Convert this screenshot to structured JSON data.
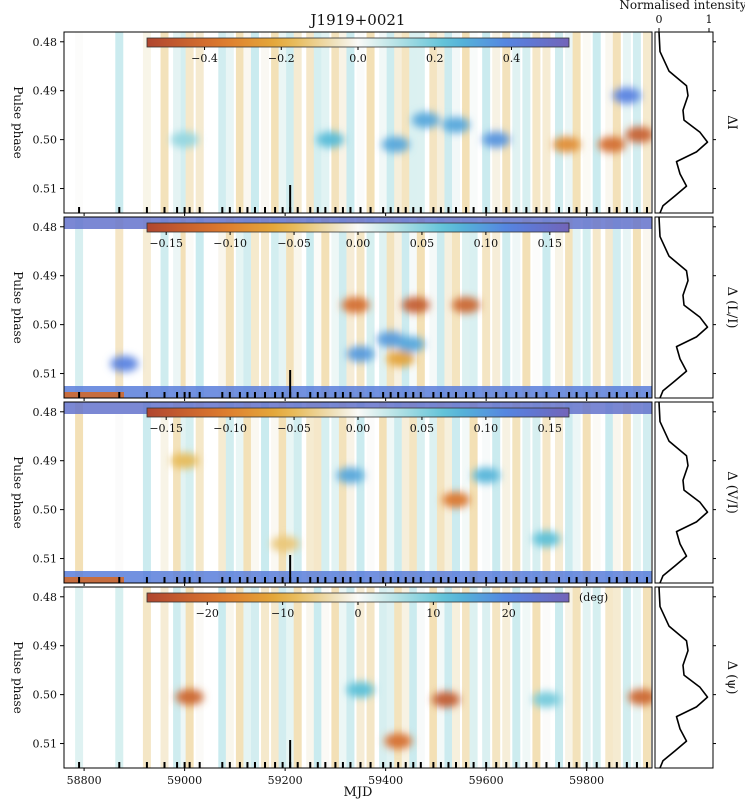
{
  "chart_data": {
    "type": "heatmap",
    "title": "J1919+0021",
    "xlabel": "MJD",
    "ylabel": "Pulse phase",
    "xlim": [
      58760,
      59930
    ],
    "ylim": [
      0.515,
      0.478
    ],
    "x_ticks": [
      58800,
      59000,
      59200,
      59400,
      59600,
      59800
    ],
    "y_ticks": [
      {
        "value": 0.48,
        "label": "0.48"
      },
      {
        "value": 0.49,
        "label": "0.49"
      },
      {
        "value": 0.5,
        "label": "0.50"
      },
      {
        "value": 0.51,
        "label": "0.51"
      }
    ],
    "profile_header": "Normalised intensity",
    "profile_ticks": [
      {
        "value": 0,
        "label": "0"
      },
      {
        "value": 1,
        "label": "1"
      }
    ],
    "panels": [
      {
        "label": "ΔI",
        "colorbar": {
          "min": -0.55,
          "max": 0.55,
          "ticks": [
            -0.4,
            -0.2,
            0.0,
            0.2,
            0.4
          ],
          "tick_labels": [
            "−0.4",
            "−0.2",
            "0.0",
            "0.2",
            "0.4"
          ],
          "unit": ""
        },
        "features": [
          {
            "mjd": 59000,
            "phase": 0.5,
            "value": 0.15
          },
          {
            "mjd": 59290,
            "phase": 0.5,
            "value": 0.25
          },
          {
            "mjd": 59420,
            "phase": 0.501,
            "value": 0.3
          },
          {
            "mjd": 59480,
            "phase": 0.496,
            "value": 0.3
          },
          {
            "mjd": 59540,
            "phase": 0.497,
            "value": 0.3
          },
          {
            "mjd": 59620,
            "phase": 0.5,
            "value": 0.35
          },
          {
            "mjd": 59760,
            "phase": 0.501,
            "value": -0.3
          },
          {
            "mjd": 59850,
            "phase": 0.501,
            "value": -0.4
          },
          {
            "mjd": 59905,
            "phase": 0.499,
            "value": -0.45
          },
          {
            "mjd": 59880,
            "phase": 0.491,
            "value": 0.4
          }
        ]
      },
      {
        "label": "Δ (L/I)",
        "colorbar": {
          "min": -0.165,
          "max": 0.165,
          "ticks": [
            -0.15,
            -0.1,
            -0.05,
            0.0,
            0.05,
            0.1,
            0.15
          ],
          "tick_labels": [
            "−0.15",
            "−0.10",
            "−0.05",
            "0.00",
            "0.05",
            "0.10",
            "0.15"
          ],
          "unit": ""
        },
        "features": [
          {
            "mjd": 59340,
            "phase": 0.496,
            "value": -0.12
          },
          {
            "mjd": 59460,
            "phase": 0.496,
            "value": -0.14
          },
          {
            "mjd": 59560,
            "phase": 0.496,
            "value": -0.13
          },
          {
            "mjd": 59410,
            "phase": 0.503,
            "value": 0.1
          },
          {
            "mjd": 59450,
            "phase": 0.504,
            "value": 0.09
          },
          {
            "mjd": 58880,
            "phase": 0.508,
            "value": 0.12
          },
          {
            "mjd": 59350,
            "phase": 0.506,
            "value": 0.1
          },
          {
            "mjd": 59430,
            "phase": 0.507,
            "value": -0.07
          }
        ]
      },
      {
        "label": "Δ (V/I)",
        "colorbar": {
          "min": -0.165,
          "max": 0.165,
          "ticks": [
            -0.15,
            -0.1,
            -0.05,
            0.0,
            0.05,
            0.1,
            0.15
          ],
          "tick_labels": [
            "−0.15",
            "−0.10",
            "−0.05",
            "0.00",
            "0.05",
            "0.10",
            "0.15"
          ],
          "unit": ""
        },
        "features": [
          {
            "mjd": 59000,
            "phase": 0.49,
            "value": -0.05
          },
          {
            "mjd": 59330,
            "phase": 0.493,
            "value": 0.09
          },
          {
            "mjd": 59540,
            "phase": 0.498,
            "value": -0.11
          },
          {
            "mjd": 59200,
            "phase": 0.507,
            "value": -0.04
          },
          {
            "mjd": 59600,
            "phase": 0.493,
            "value": 0.08
          },
          {
            "mjd": 59720,
            "phase": 0.506,
            "value": 0.07
          }
        ]
      },
      {
        "label": "Δ (ψ)",
        "colorbar": {
          "min": -28,
          "max": 28,
          "ticks": [
            -20,
            -10,
            0,
            10,
            20
          ],
          "tick_labels": [
            "−20",
            "−10",
            "0",
            "10",
            "20"
          ],
          "unit": "(deg)"
        },
        "features": [
          {
            "mjd": 59010,
            "phase": 0.5005,
            "value": -22
          },
          {
            "mjd": 59520,
            "phase": 0.501,
            "value": -24
          },
          {
            "mjd": 59425,
            "phase": 0.5095,
            "value": -20
          },
          {
            "mjd": 59910,
            "phase": 0.5005,
            "value": -22
          },
          {
            "mjd": 59350,
            "phase": 0.499,
            "value": 12
          },
          {
            "mjd": 59720,
            "phase": 0.501,
            "value": 10
          }
        ]
      }
    ],
    "profile": [
      {
        "phase": 0.478,
        "intensity": 0.0
      },
      {
        "phase": 0.482,
        "intensity": 0.02
      },
      {
        "phase": 0.486,
        "intensity": 0.2
      },
      {
        "phase": 0.489,
        "intensity": 0.55
      },
      {
        "phase": 0.491,
        "intensity": 0.58
      },
      {
        "phase": 0.494,
        "intensity": 0.48
      },
      {
        "phase": 0.496,
        "intensity": 0.5
      },
      {
        "phase": 0.4985,
        "intensity": 0.82
      },
      {
        "phase": 0.5005,
        "intensity": 0.97
      },
      {
        "phase": 0.5025,
        "intensity": 0.75
      },
      {
        "phase": 0.5045,
        "intensity": 0.35
      },
      {
        "phase": 0.507,
        "intensity": 0.42
      },
      {
        "phase": 0.5095,
        "intensity": 0.55
      },
      {
        "phase": 0.5115,
        "intensity": 0.32
      },
      {
        "phase": 0.5135,
        "intensity": 0.08
      },
      {
        "phase": 0.515,
        "intensity": 0.02
      }
    ],
    "observation_mjds": [
      58790,
      58870,
      58925,
      58960,
      58985,
      59000,
      59010,
      59030,
      59075,
      59090,
      59110,
      59125,
      59140,
      59160,
      59180,
      59195,
      59210,
      59225,
      59250,
      59265,
      59280,
      59300,
      59315,
      59330,
      59350,
      59370,
      59395,
      59410,
      59425,
      59440,
      59455,
      59470,
      59495,
      59510,
      59525,
      59540,
      59560,
      59575,
      59600,
      59620,
      59640,
      59660,
      59680,
      59700,
      59720,
      59745,
      59765,
      59780,
      59800,
      59820,
      59845,
      59860,
      59880,
      59900,
      59920
    ],
    "reference_mjd": 59210
  }
}
